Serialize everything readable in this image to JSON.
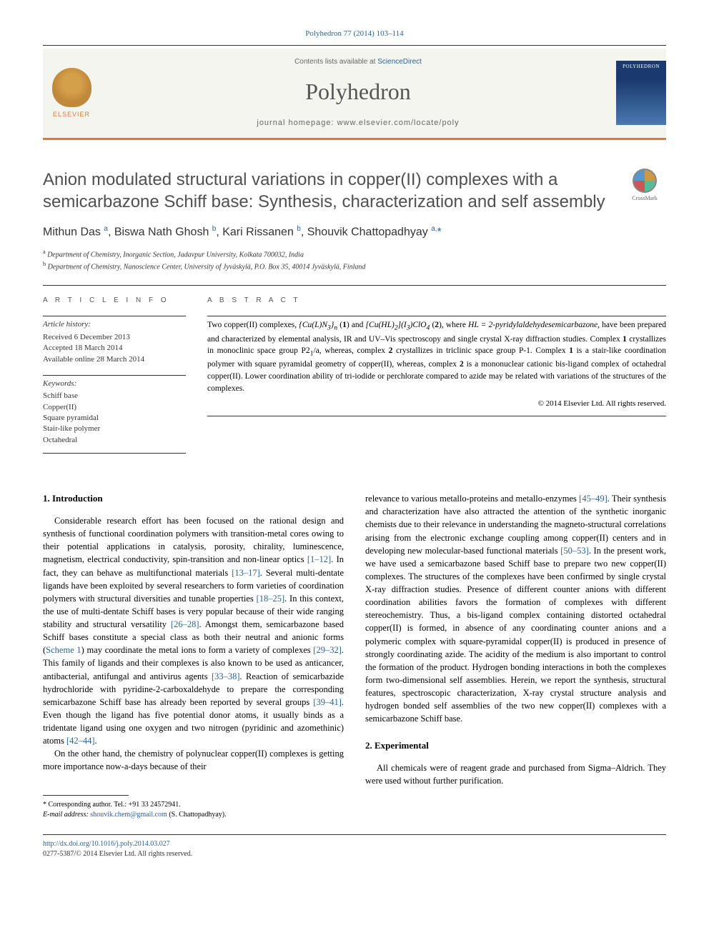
{
  "citation": "Polyhedron 77 (2014) 103–114",
  "masthead": {
    "contents_prefix": "Contents lists available at ",
    "contents_link": "ScienceDirect",
    "journal": "Polyhedron",
    "homepage_prefix": "journal homepage: ",
    "homepage_url": "www.elsevier.com/locate/poly",
    "publisher_label": "ELSEVIER",
    "cover_label": "POLYHEDRON"
  },
  "title": "Anion modulated structural variations in copper(II) complexes with a semicarbazone Schiff base: Synthesis, characterization and self assembly",
  "crossmark_label": "CrossMark",
  "authors_html": "Mithun Das <sup>a</sup>, Biswa Nath Ghosh <sup>b</sup>, Kari Rissanen <sup>b</sup>, Shouvik Chattopadhyay <sup>a,</sup><span class=\"corr\">*</span>",
  "affiliations": [
    {
      "sup": "a",
      "text": "Department of Chemistry, Inorganic Section, Jadavpur University, Kolkata 700032, India"
    },
    {
      "sup": "b",
      "text": "Department of Chemistry, Nanoscience Center, University of Jyväskylä, P.O. Box 35, 40014 Jyväskylä, Finland"
    }
  ],
  "article_info": {
    "heading": "A R T I C L E   I N F O",
    "history_label": "Article history:",
    "history": [
      "Received 6 December 2013",
      "Accepted 18 March 2014",
      "Available online 28 March 2014"
    ],
    "keywords_label": "Keywords:",
    "keywords": [
      "Schiff base",
      "Copper(II)",
      "Square pyramidal",
      "Stair-like polymer",
      "Octahedral"
    ]
  },
  "abstract": {
    "heading": "A B S T R A C T",
    "body_html": "Two copper(II) complexes, <i>{Cu(L)N<sub>3</sub>}<sub>n</sub></i> (<b>1</b>) and <i>[Cu(HL)<sub>2</sub>](I<sub>3</sub>)ClO<sub>4</sub></i> (<b>2</b>), where <i>HL = 2-pyridylaldehydesemicarbazone</i>, have been prepared and characterized by elemental analysis, IR and UV–Vis spectroscopy and single crystal X-ray diffraction studies. Complex <b>1</b> crystallizes in monoclinic space group P2<sub>1</sub>/a, whereas, complex <b>2</b> crystallizes in triclinic space group P-1. Complex <b>1</b> is a stair-like coordination polymer with square pyramidal geometry of copper(II), whereas, complex <b>2</b> is a mononuclear cationic bis-ligand complex of octahedral copper(II). Lower coordination ability of tri-iodide or perchlorate compared to azide may be related with variations of the structures of the complexes.",
    "copyright": "© 2014 Elsevier Ltd. All rights reserved."
  },
  "sections": {
    "intro_heading": "1. Introduction",
    "intro_p1_html": "Considerable research effort has been focused on the rational design and synthesis of functional coordination polymers with transition-metal cores owing to their potential applications in catalysis, porosity, chirality, luminescence, magnetism, electrical conductivity, spin-transition and non-linear optics <span class=\"ref\">[1–12]</span>. In fact, they can behave as multifunctional materials <span class=\"ref\">[13–17]</span>. Several multi-dentate ligands have been exploited by several researchers to form varieties of coordination polymers with structural diversities and tunable properties <span class=\"ref\">[18–25]</span>. In this context, the use of multi-dentate Schiff bases is very popular because of their wide ranging stability and structural versatility <span class=\"ref\">[26–28]</span>. Amongst them, semicarbazone based Schiff bases constitute a special class as both their neutral and anionic forms (<span class=\"ref\">Scheme 1</span>) may coordinate the metal ions to form a variety of complexes <span class=\"ref\">[29–32]</span>. This family of ligands and their complexes is also known to be used as anticancer, antibacterial, antifungal and antivirus agents <span class=\"ref\">[33–38]</span>. Reaction of semicarbazide hydrochloride with pyridine-2-carboxaldehyde to prepare the corresponding semicarbazone Schiff base has already been reported by several groups <span class=\"ref\">[39–41]</span>. Even though the ligand has five potential donor atoms, it usually binds as a tridentate ligand using one oxygen and two nitrogen (pyridinic and azomethinic) atoms <span class=\"ref\">[42–44]</span>.",
    "intro_p2_html": "On the other hand, the chemistry of polynuclear copper(II) complexes is getting more importance now-a-days because of their",
    "col2_p1_html": "relevance to various metallo-proteins and metallo-enzymes <span class=\"ref\">[45–49]</span>. Their synthesis and characterization have also attracted the attention of the synthetic inorganic chemists due to their relevance in understanding the magneto-structural correlations arising from the electronic exchange coupling among copper(II) centers and in developing new molecular-based functional materials <span class=\"ref\">[50–53]</span>. In the present work, we have used a semicarbazone based Schiff base to prepare two new copper(II) complexes. The structures of the complexes have been confirmed by single crystal X-ray diffraction studies. Presence of different counter anions with different coordination abilities favors the formation of complexes with different stereochemistry. Thus, a bis-ligand complex containing distorted octahedral copper(II) is formed, in absence of any coordinating counter anions and a polymeric complex with square-pyramidal copper(II) is produced in presence of strongly coordinating azide. The acidity of the medium is also important to control the formation of the product. Hydrogen bonding interactions in both the complexes form two-dimensional self assemblies. Herein, we report the synthesis, structural features, spectroscopic characterization, X-ray crystal structure analysis and hydrogen bonded self assemblies of the two new copper(II) complexes with a semicarbazone Schiff base.",
    "exp_heading": "2. Experimental",
    "exp_p1": "All chemicals were of reagent grade and purchased from Sigma–Aldrich. They were used without further purification."
  },
  "footnote": {
    "corr_label": "* Corresponding author. Tel.: +91 33 24572941.",
    "email_label": "E-mail address:",
    "email": "shouvik.chem@gmail.com",
    "email_suffix": "(S. Chattopadhyay)."
  },
  "footer": {
    "doi": "http://dx.doi.org/10.1016/j.poly.2014.03.027",
    "issn_line": "0277-5387/© 2014 Elsevier Ltd. All rights reserved."
  },
  "colors": {
    "link": "#2a6496",
    "accent": "#e8762c",
    "text": "#000000",
    "heading_gray": "#505050"
  }
}
